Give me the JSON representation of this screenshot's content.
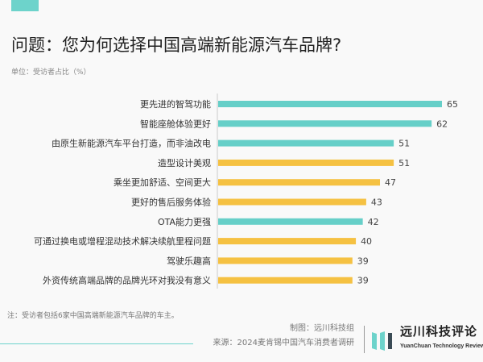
{
  "title": "问题：您为何选择中国高端新能源汽车品牌?",
  "unit": "单位：受访者占比（%）",
  "note": "注：受访者包括6家中国高端新能源汽车品牌的车主。",
  "credit_maker": "制图：远川科技组",
  "credit_source": "来源：2024麦肯锡中国汽车消费者调研",
  "logo": {
    "cn": "远川科技评论",
    "en": "YuanChuan Technology Review"
  },
  "colors": {
    "teal": "#66cfc8",
    "yellow": "#f5c142",
    "accent": "#6dd3cb"
  },
  "chart_data": {
    "type": "bar",
    "orientation": "horizontal",
    "title": "问题：您为何选择中国高端新能源汽车品牌?",
    "categories": [
      "更先进的智驾功能",
      "智能座舱体验更好",
      "由原生新能源汽车平台打造，而非油改电",
      "造型设计美观",
      "乘坐更加舒适、空间更大",
      "更好的售后服务体验",
      "OTA能力更强",
      "可通过换电或增程混动技术解决续航里程问题",
      "驾驶乐趣高",
      "外资传统高端品牌的品牌光环对我没有意义"
    ],
    "values": [
      65,
      62,
      51,
      51,
      47,
      43,
      42,
      40,
      39,
      39
    ],
    "bar_colors": [
      "teal",
      "teal",
      "teal",
      "yellow",
      "yellow",
      "yellow",
      "teal",
      "yellow",
      "yellow",
      "yellow"
    ],
    "xlim": [
      0,
      65
    ],
    "grid": false,
    "data_labels": true
  }
}
